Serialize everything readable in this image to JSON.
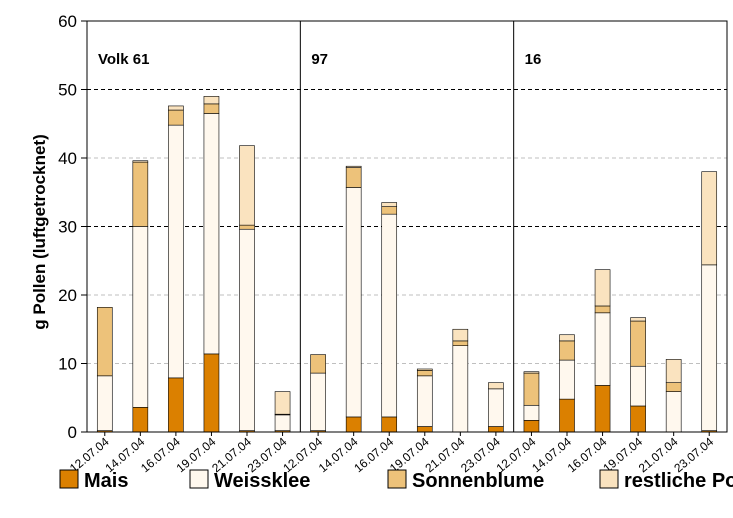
{
  "chart_data": {
    "type": "bar",
    "stacked": true,
    "ylabel": "g Pollen (luftgetrocknet)",
    "ylim": [
      0,
      60
    ],
    "yticks": [
      0,
      10,
      20,
      30,
      40,
      50,
      60
    ],
    "grid": "dashed horizontal at 10, 20, 30, 40, 50 (stronger at 30 and 50)",
    "legend_position": "bottom",
    "series": [
      {
        "name": "Mais",
        "color": "#DB8000"
      },
      {
        "name": "Weissklee",
        "color": "#FFF8EE"
      },
      {
        "name": "Sonnenblume",
        "color": "#EDC27A"
      },
      {
        "name": "restliche Pollen",
        "color": "#FAE3BF"
      }
    ],
    "groups": [
      {
        "label": "Volk 61",
        "categories": [
          "12.07.04",
          "14.07.04",
          "16.07.04",
          "19.07.04",
          "21.07.04",
          "23.07.04"
        ],
        "values": {
          "Mais": [
            0.2,
            3.6,
            7.9,
            11.4,
            0.2,
            0.2
          ],
          "Weissklee": [
            8.0,
            26.4,
            36.9,
            35.1,
            29.4,
            2.3
          ],
          "Sonnenblume": [
            10.0,
            9.4,
            2.2,
            1.4,
            0.6,
            0.1
          ],
          "restliche Pollen": [
            0.0,
            0.2,
            0.6,
            1.1,
            11.6,
            3.3
          ]
        }
      },
      {
        "label": "97",
        "categories": [
          "12.07.04",
          "14.07.04",
          "16.07.04",
          "19.07.04",
          "21.07.04",
          "23.07.04"
        ],
        "values": {
          "Mais": [
            0.2,
            2.2,
            2.2,
            0.8,
            0.0,
            0.8
          ],
          "Weissklee": [
            8.4,
            33.5,
            29.6,
            7.4,
            12.6,
            5.5
          ],
          "Sonnenblume": [
            2.7,
            2.9,
            1.1,
            0.8,
            0.7,
            0.0
          ],
          "restliche Pollen": [
            0.0,
            0.2,
            0.6,
            0.2,
            1.7,
            0.9
          ]
        }
      },
      {
        "label": "16",
        "categories": [
          "12.07.04",
          "14.07.04",
          "16.07.04",
          "19.07.04",
          "21.07.04",
          "23.07.04"
        ],
        "values": {
          "Mais": [
            1.7,
            4.8,
            6.8,
            3.8,
            0.0,
            0.2
          ],
          "Weissklee": [
            2.2,
            5.7,
            10.6,
            5.8,
            5.9,
            24.2
          ],
          "Sonnenblume": [
            4.7,
            2.8,
            1.0,
            6.6,
            1.3,
            0.0
          ],
          "restliche Pollen": [
            0.2,
            0.9,
            5.3,
            0.5,
            3.4,
            13.6
          ]
        }
      }
    ]
  }
}
